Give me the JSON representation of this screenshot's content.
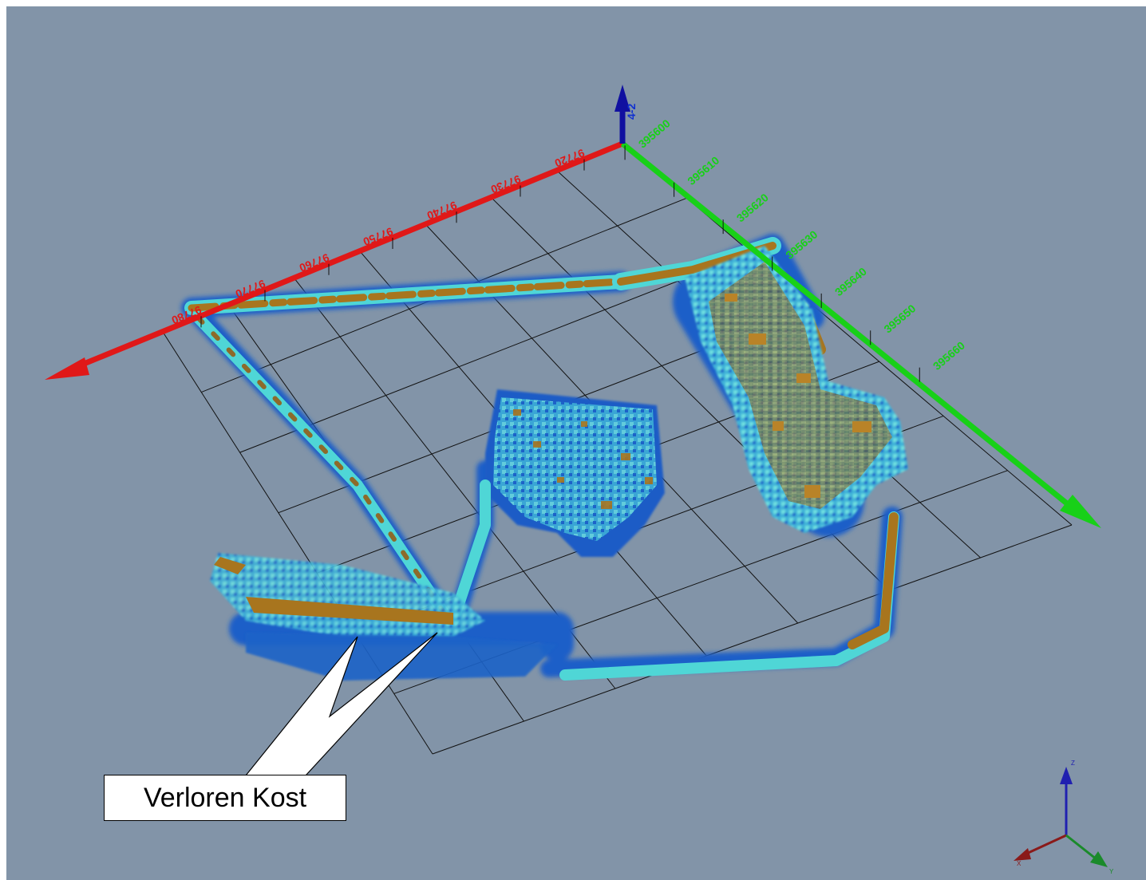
{
  "annotation": {
    "label": "Verloren Kost"
  },
  "axes": {
    "x_axis": {
      "color": "#e01818",
      "ticks": [
        "97720",
        "97730",
        "97740",
        "97750",
        "97760",
        "97770",
        "97780"
      ]
    },
    "y_axis": {
      "color": "#18d018",
      "ticks": [
        "395600",
        "395610",
        "395620",
        "395630",
        "395640",
        "395650",
        "395660"
      ]
    },
    "z_axis": {
      "color": "#1010a0",
      "label": "4-2"
    }
  },
  "orientation_triad": {
    "labels": [
      "X",
      "Y",
      "Z"
    ]
  },
  "colors": {
    "background": "#8294a8",
    "low_density": "#1a5fc8",
    "mid_density": "#4fd6d6",
    "high_density": "#a8751e"
  }
}
